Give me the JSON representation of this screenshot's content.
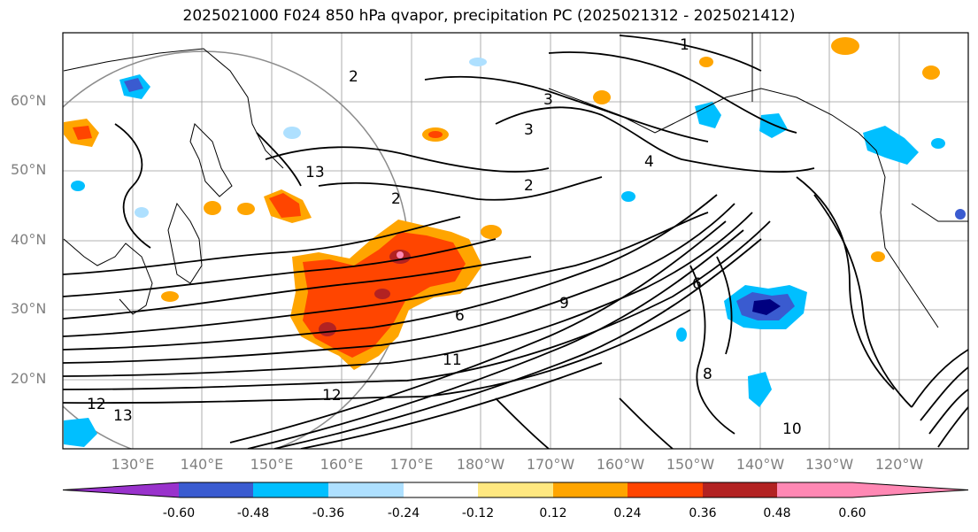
{
  "title": "2025021000 F024 850 hPa qvapor, precipitation PC (2025021312 - 2025021412)",
  "lat_labels": [
    "60°N",
    "50°N",
    "40°N",
    "30°N",
    "20°N"
  ],
  "lon_labels": [
    "130°E",
    "140°E",
    "150°E",
    "160°E",
    "170°E",
    "180°W",
    "170°W",
    "160°W",
    "150°W",
    "140°W",
    "130°W",
    "120°W"
  ],
  "colorbar": {
    "colors": [
      "#9932cc",
      "#000080",
      "#3a5bd0",
      "#00bfff",
      "#aee0ff",
      "#ffffff",
      "#ffe880",
      "#ffa500",
      "#ff4500",
      "#b22222",
      "#ff88b4"
    ],
    "tick_labels": [
      "-0.60",
      "-0.48",
      "-0.36",
      "-0.24",
      "-0.12",
      "0.12",
      "0.24",
      "0.36",
      "0.48",
      "0.60"
    ]
  },
  "contour_labels": [
    "1",
    "2",
    "2",
    "2",
    "3",
    "3",
    "4",
    "6",
    "6",
    "8",
    "9",
    "10",
    "11",
    "12",
    "12",
    "13",
    "13"
  ]
}
